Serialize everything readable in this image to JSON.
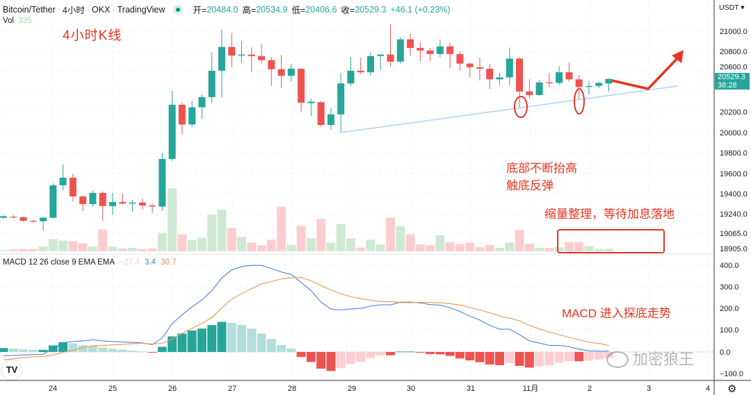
{
  "header": {
    "symbol": "Bitcoin/Tether",
    "interval": "4小时",
    "exchange": "OKX",
    "source": "TradingView",
    "open_label": "开=",
    "open": "20484.0",
    "high_label": "高=",
    "high": "20534.9",
    "low_label": "低=",
    "low": "20406.6",
    "close_label": "收=",
    "close": "20529.3",
    "change": "+46.1 (+0.23%)",
    "separator": "·"
  },
  "volume_legend": {
    "label": "Vol",
    "value": "335"
  },
  "macd_legend": {
    "label": "MACD 12 26 close 9 EMA EMA",
    "hist": "−27.4",
    "macd": "3.4",
    "signal": "30.7"
  },
  "price_axis": {
    "currency": "USDT ▾",
    "labels": [
      "21000.0",
      "20800.0",
      "20600.0",
      "20200.0",
      "20000.0",
      "19800.0",
      "19600.0",
      "19400.0",
      "19240.0",
      "19065.0",
      "18905.0"
    ],
    "last_price": "20529.3",
    "countdown": "38:28"
  },
  "macd_axis": {
    "labels": [
      "400.0",
      "300.0",
      "200.0",
      "100.0",
      "0.0",
      "−100.0"
    ]
  },
  "time_axis": {
    "labels": [
      "24",
      "25",
      "26",
      "27",
      "28",
      "29",
      "30",
      "31",
      "11月",
      "2",
      "3",
      "4"
    ]
  },
  "annotations": {
    "title": "4小时K线",
    "bottom_rising": "底部不断抬高",
    "rebound": "触底反弹",
    "consolidation": "缩量整理，等待加息落地",
    "macd_note": "MACD 进入探底走势"
  },
  "watermark": "加密狼王",
  "logo": "TV",
  "colors": {
    "up": "#26a69a",
    "down": "#ef5350",
    "up_light": "#b2dfdb",
    "down_light": "#ffcdd2",
    "vol_up": "#cfe8d3",
    "vol_down": "#fccdd0",
    "macd": "#4d7fe0",
    "signal": "#f0934a",
    "annotation": "#e8331f",
    "trendline": "#b3d4f5"
  },
  "chart_data": [
    {
      "type": "candlestick",
      "title": "Bitcoin/Tether · 4小时 · OKX",
      "ylabel": "USDT",
      "ylim": [
        18900,
        21200
      ],
      "x_labels": [
        "24",
        "25",
        "26",
        "27",
        "28",
        "29",
        "30",
        "31",
        "11月",
        "2",
        "3",
        "4"
      ],
      "ohlc": [
        [
          19160,
          19185,
          19150,
          19175
        ],
        [
          19170,
          19185,
          19150,
          19165
        ],
        [
          19165,
          19170,
          19120,
          19130
        ],
        [
          19130,
          19140,
          19105,
          19125
        ],
        [
          19125,
          19170,
          19030,
          19160
        ],
        [
          19160,
          19500,
          19150,
          19480
        ],
        [
          19480,
          19685,
          19430,
          19555
        ],
        [
          19555,
          19590,
          19320,
          19370
        ],
        [
          19370,
          19380,
          19225,
          19295
        ],
        [
          19295,
          19425,
          19267,
          19405
        ],
        [
          19405,
          19420,
          19130,
          19275
        ],
        [
          19275,
          19405,
          19190,
          19315
        ],
        [
          19315,
          19395,
          19290,
          19300
        ],
        [
          19300,
          19335,
          19220,
          19310
        ],
        [
          19310,
          19350,
          19245,
          19280
        ],
        [
          19280,
          19300,
          19210,
          19270
        ],
        [
          19270,
          19800,
          19230,
          19740
        ],
        [
          19740,
          20410,
          19720,
          20275
        ],
        [
          20275,
          20295,
          19985,
          20080
        ],
        [
          20080,
          20310,
          20055,
          20250
        ],
        [
          20250,
          20375,
          20135,
          20350
        ],
        [
          20350,
          20790,
          20290,
          20610
        ],
        [
          20610,
          21015,
          20350,
          20845
        ],
        [
          20845,
          20985,
          20645,
          20760
        ],
        [
          20760,
          20905,
          20690,
          20770
        ],
        [
          20770,
          20840,
          20595,
          20755
        ],
        [
          20755,
          20870,
          20685,
          20715
        ],
        [
          20715,
          20745,
          20460,
          20625
        ],
        [
          20625,
          20765,
          20440,
          20560
        ],
        [
          20560,
          20680,
          20500,
          20630
        ],
        [
          20630,
          20635,
          20200,
          20295
        ],
        [
          20290,
          20335,
          20165,
          20305
        ],
        [
          20300,
          20310,
          20055,
          20075
        ],
        [
          20075,
          20245,
          20030,
          20180
        ],
        [
          20180,
          20590,
          20000,
          20485
        ],
        [
          20485,
          20745,
          20460,
          20610
        ],
        [
          20610,
          20740,
          20575,
          20595
        ],
        [
          20595,
          20795,
          20560,
          20755
        ],
        [
          20755,
          20775,
          20615,
          20770
        ],
        [
          20770,
          21070,
          20655,
          20700
        ],
        [
          20700,
          20940,
          20680,
          20920
        ],
        [
          20920,
          20975,
          20760,
          20835
        ],
        [
          20835,
          20890,
          20705,
          20810
        ],
        [
          20810,
          20835,
          20705,
          20775
        ],
        [
          20775,
          20920,
          20740,
          20850
        ],
        [
          20850,
          20885,
          20635,
          20775
        ],
        [
          20775,
          20800,
          20610,
          20680
        ],
        [
          20680,
          20690,
          20540,
          20645
        ],
        [
          20645,
          20740,
          20515,
          20630
        ],
        [
          20630,
          20680,
          20430,
          20525
        ],
        [
          20525,
          20590,
          20465,
          20545
        ],
        [
          20545,
          20840,
          20465,
          20730
        ],
        [
          20730,
          20745,
          20245,
          20405
        ],
        [
          20405,
          20525,
          20335,
          20370
        ],
        [
          20370,
          20520,
          20365,
          20495
        ],
        [
          20495,
          20590,
          20445,
          20490
        ],
        [
          20490,
          20655,
          20470,
          20595
        ],
        [
          20595,
          20690,
          20500,
          20525
        ],
        [
          20525,
          20570,
          20330,
          20450
        ],
        [
          20450,
          20515,
          20375,
          20460
        ],
        [
          20460,
          20500,
          20440,
          20490
        ],
        [
          20484.0,
          20534.9,
          20406.6,
          20529.3
        ]
      ],
      "volume": [
        150,
        240,
        300,
        300,
        600,
        1590,
        1380,
        1290,
        1050,
        600,
        2820,
        600,
        360,
        450,
        300,
        360,
        2400,
        8160,
        2190,
        1440,
        1740,
        4740,
        5400,
        3000,
        1860,
        1140,
        750,
        1500,
        5790,
        840,
        3300,
        1710,
        4200,
        1110,
        3540,
        1650,
        480,
        1500,
        900,
        4350,
        3240,
        2190,
        900,
        750,
        2100,
        1200,
        960,
        1140,
        540,
        810,
        450,
        1140,
        2760,
        990,
        450,
        450,
        540,
        1200,
        1200,
        660,
        300,
        335
      ],
      "trendline": {
        "from_price": 20000,
        "to_price": 20460
      }
    },
    {
      "type": "macd",
      "ylim": [
        -130,
        420
      ],
      "series": [
        {
          "name": "MACD",
          "values": [
            -18,
            -16,
            -14,
            -12,
            -11,
            16,
            43,
            48,
            51,
            56,
            51,
            48,
            46,
            44,
            42,
            34,
            64,
            131,
            171,
            208,
            240,
            283,
            342,
            379,
            395,
            400,
            400,
            385,
            369,
            358,
            321,
            283,
            230,
            198,
            194,
            199,
            201,
            212,
            218,
            217,
            230,
            230,
            226,
            219,
            216,
            205,
            187,
            166,
            147,
            123,
            105,
            105,
            80,
            51,
            41,
            30,
            30,
            24,
            13,
            5,
            4,
            3.4
          ]
        },
        {
          "name": "Signal",
          "values": [
            -36,
            -32,
            -26,
            -22,
            -21,
            -14,
            -2,
            8,
            20,
            28,
            30,
            33,
            35,
            38,
            40,
            37,
            40,
            59,
            86,
            109,
            132,
            159,
            203,
            244,
            270,
            292,
            315,
            325,
            337,
            342,
            344,
            329,
            307,
            286,
            269,
            255,
            246,
            239,
            233,
            232,
            228,
            228,
            229,
            229,
            227,
            223,
            217,
            205,
            194,
            181,
            166,
            156,
            144,
            123,
            106,
            92,
            80,
            67,
            56,
            45,
            39,
            30.7
          ]
        },
        {
          "name": "Histogram",
          "values": [
            18,
            16,
            12,
            10,
            10,
            30,
            45,
            40,
            31,
            28,
            21,
            15,
            11,
            6,
            2,
            -3,
            24,
            72,
            85,
            99,
            108,
            124,
            139,
            135,
            125,
            108,
            85,
            60,
            32,
            16,
            -23,
            -46,
            -77,
            -88,
            -75,
            -56,
            -45,
            -27,
            -15,
            -15,
            2,
            2,
            -3,
            -10,
            -11,
            -18,
            -30,
            -39,
            -47,
            -58,
            -61,
            -51,
            -64,
            -72,
            -65,
            -62,
            -50,
            -43,
            -43,
            -40,
            -35,
            -27.4
          ]
        }
      ]
    }
  ]
}
